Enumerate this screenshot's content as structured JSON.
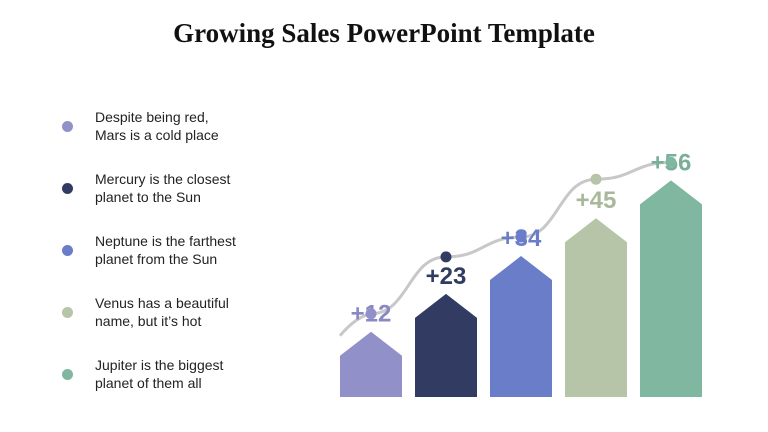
{
  "title": "Growing Sales PowerPoint Template",
  "legend": [
    {
      "line1": "Despite being red,",
      "line2": "Mars is a cold place",
      "color": "#9290c8"
    },
    {
      "line1": "Mercury is the closest",
      "line2": "planet to the Sun",
      "color": "#323c62"
    },
    {
      "line1": "Neptune is the farthest",
      "line2": "planet from the Sun",
      "color": "#6a7dc8"
    },
    {
      "line1": "Venus has a beautiful",
      "line2": "name, but it’s hot",
      "color": "#b6c4a8"
    },
    {
      "line1": "Jupiter is the biggest",
      "line2": "planet of them all",
      "color": "#80b7a0"
    }
  ],
  "chart_data": {
    "type": "bar",
    "values": [
      12,
      23,
      34,
      45,
      56
    ],
    "labels": [
      "+12",
      "+23",
      "+34",
      "+45",
      "+56"
    ],
    "colors": [
      "#9290c8",
      "#323c62",
      "#6a7dc8",
      "#b6c4a8",
      "#80b7a0"
    ],
    "label_colors": [
      "#8a88c2",
      "#323c62",
      "#6a7dc8",
      "#a9b89a",
      "#7aae98"
    ],
    "trend_line": {
      "color": "#c8c8c8",
      "point_colors": [
        "#9290c8",
        "#323c62",
        "#6a7dc8",
        "#b6c4a8",
        "#80b7a0"
      ]
    },
    "bar_shape": "arrow-up",
    "grid": false
  }
}
